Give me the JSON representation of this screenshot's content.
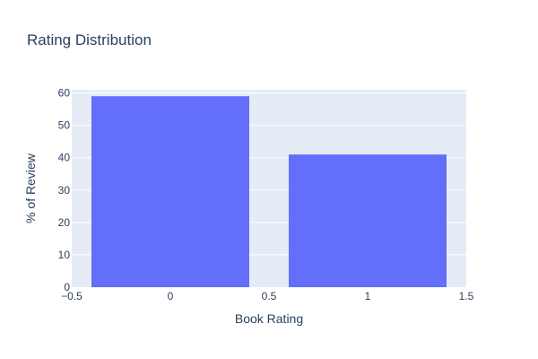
{
  "chart_data": {
    "type": "bar",
    "title": "Rating Distribution",
    "xlabel": "Book Rating",
    "ylabel": "% of Review",
    "x": [
      0,
      1
    ],
    "values": [
      59,
      41
    ],
    "bar_width": 0.8,
    "xlim": [
      -0.5,
      1.5
    ],
    "ylim": [
      0,
      61
    ],
    "xticks": [
      -0.5,
      0,
      0.5,
      1,
      1.5
    ],
    "xtick_labels": [
      "−0.5",
      "0",
      "0.5",
      "1",
      "1.5"
    ],
    "yticks": [
      0,
      10,
      20,
      30,
      40,
      50,
      60
    ],
    "ytick_labels": [
      "0",
      "10",
      "20",
      "30",
      "40",
      "50",
      "60"
    ],
    "grid": true,
    "colors": {
      "bar": "#636efa",
      "plot_bg": "#e5ecf6",
      "grid": "#ffffff",
      "text": "#2a3f5f"
    }
  }
}
